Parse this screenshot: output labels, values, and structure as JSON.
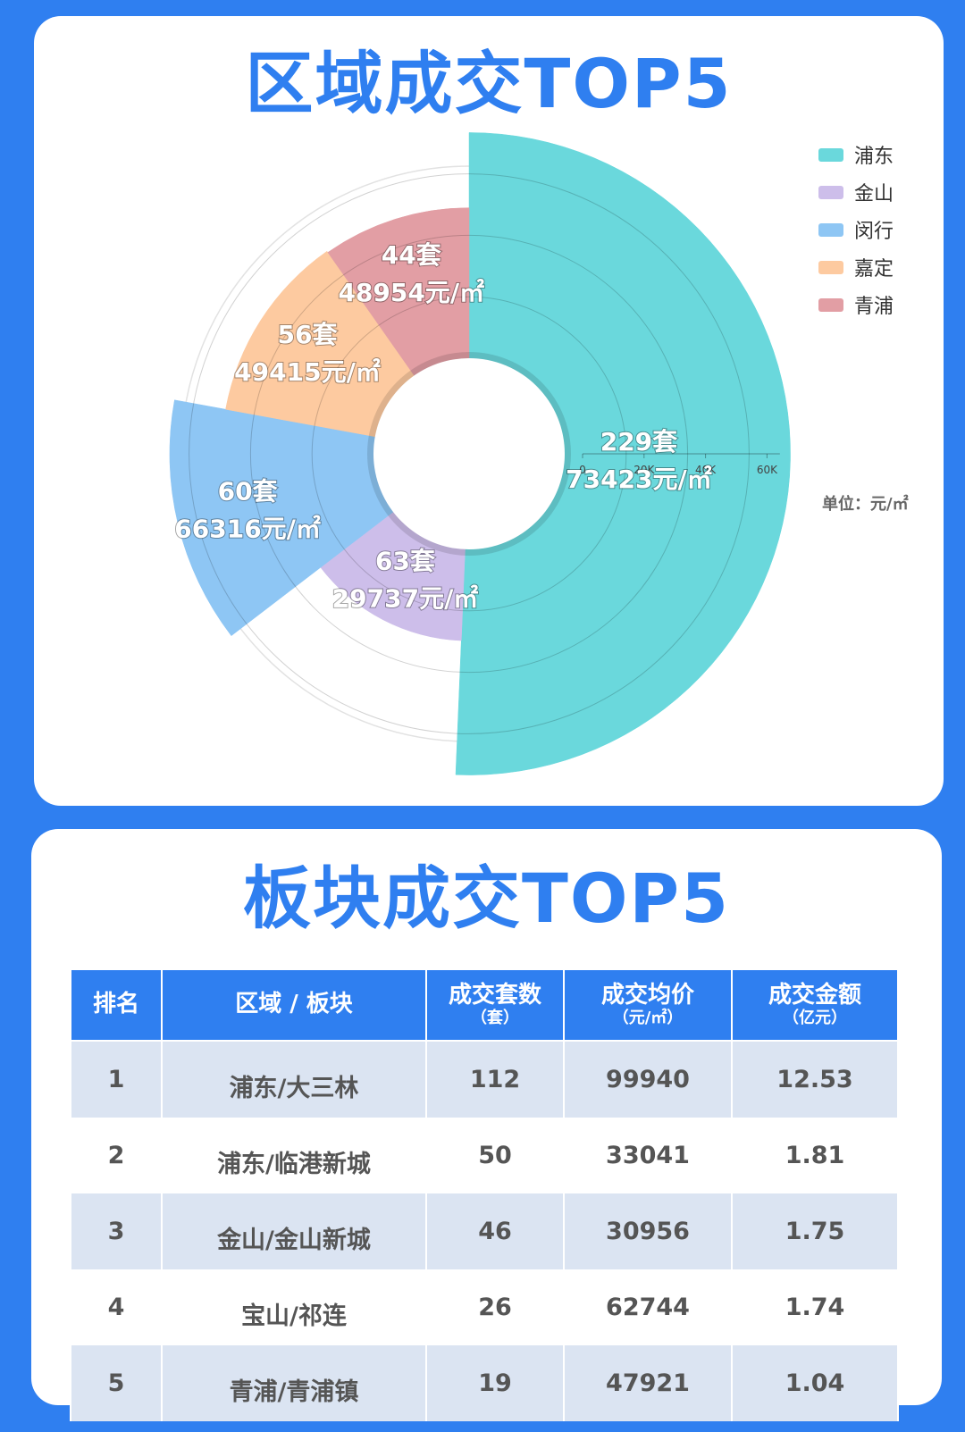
{
  "section1": {
    "title": "区域成交TOP5",
    "unit_note": "单位：元/㎡"
  },
  "chart_data": {
    "type": "rose",
    "title": "区域成交TOP5",
    "categories": [
      "浦东",
      "金山",
      "闵行",
      "嘉定",
      "青浦"
    ],
    "series": [
      {
        "metric": "套",
        "values": [
          229,
          63,
          60,
          56,
          44
        ]
      },
      {
        "metric": "元/㎡",
        "values": [
          73423,
          29737,
          66316,
          49415,
          48954
        ]
      }
    ],
    "labels": [
      [
        "229套",
        "73423元/㎡"
      ],
      [
        "63套",
        "29737元/㎡"
      ],
      [
        "60套",
        "66316元/㎡"
      ],
      [
        "56套",
        "49415元/㎡"
      ],
      [
        "44套",
        "48954元/㎡"
      ]
    ],
    "radial_axis": {
      "ticks": [
        "0",
        "20K",
        "40K",
        "60K"
      ],
      "range": [
        0,
        70000
      ]
    },
    "legend": [
      "浦东",
      "金山",
      "闵行",
      "嘉定",
      "青浦"
    ],
    "legend_position": "top-right",
    "colors": [
      "#6ad8dc",
      "#cdbeea",
      "#8ec6f4",
      "#fdcaa0",
      "#e29ea4"
    ]
  },
  "section2": {
    "title": "板块成交TOP5",
    "headers": [
      {
        "main": "排名",
        "sub": ""
      },
      {
        "main": "区域 / 板块",
        "sub": ""
      },
      {
        "main": "成交套数",
        "sub": "（套）"
      },
      {
        "main": "成交均价",
        "sub": "（元/㎡）"
      },
      {
        "main": "成交金额",
        "sub": "（亿元）"
      }
    ],
    "rows": [
      [
        "1",
        "浦东/大三林",
        "112",
        "99940",
        "12.53"
      ],
      [
        "2",
        "浦东/临港新城",
        "50",
        "33041",
        "1.81"
      ],
      [
        "3",
        "金山/金山新城",
        "46",
        "30956",
        "1.75"
      ],
      [
        "4",
        "宝山/祁连",
        "26",
        "62744",
        "1.74"
      ],
      [
        "5",
        "青浦/青浦镇",
        "19",
        "47921",
        "1.04"
      ]
    ]
  }
}
